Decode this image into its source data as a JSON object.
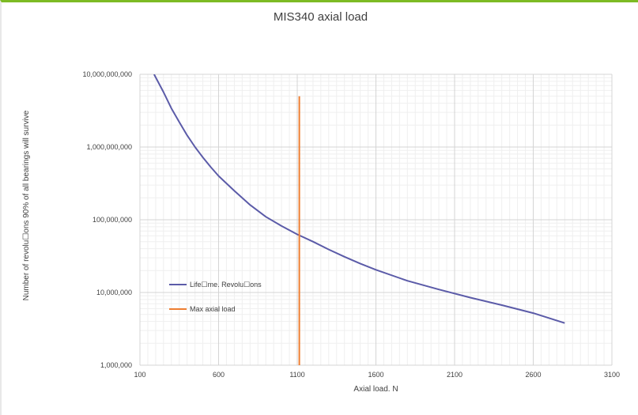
{
  "chart_data": {
    "type": "line",
    "title": "MIS340 axial load",
    "xlabel": "Axial load. N",
    "ylabel": "Number of revolu☐ons 90% of all bearings will survive",
    "xlim": [
      100,
      3100
    ],
    "ylim": [
      1000000,
      10000000000
    ],
    "yscale": "log",
    "grid": true,
    "legend_position": "lower-left inside",
    "x_ticks": [
      100,
      600,
      1100,
      1600,
      2100,
      2600,
      3100
    ],
    "x_tick_labels": [
      "100",
      "600",
      "1100",
      "1600",
      "2100",
      "2600",
      "3100"
    ],
    "y_ticks": [
      1000000,
      10000000,
      100000000,
      1000000000,
      10000000000
    ],
    "y_tick_labels": [
      "1,000,000",
      "10,000,000",
      "100,000,000",
      "1,000,000,000",
      "10,000,000,000"
    ],
    "series": [
      {
        "name": "Life☐me. Revolu☐ons",
        "color": "#5b5ba8",
        "x": [
          190,
          250,
          300,
          350,
          400,
          450,
          500,
          550,
          600,
          700,
          800,
          900,
          1000,
          1100,
          1200,
          1300,
          1400,
          1500,
          1600,
          1800,
          2000,
          2200,
          2400,
          2600,
          2800
        ],
        "y": [
          10000000000,
          5700000000,
          3400000000,
          2200000000,
          1450000000,
          1000000000,
          720000000,
          530000000,
          400000000,
          250000000,
          160000000,
          110000000,
          82000000,
          63000000,
          50000000,
          39000000,
          31000000,
          25000000,
          20500000,
          14500000,
          11000000,
          8500000,
          6700000,
          5200000,
          3800000
        ]
      },
      {
        "name": "Max axial load",
        "color": "#ed7d31",
        "x": [
          1113,
          1113
        ],
        "y": [
          1000000,
          5000000000
        ]
      }
    ]
  }
}
